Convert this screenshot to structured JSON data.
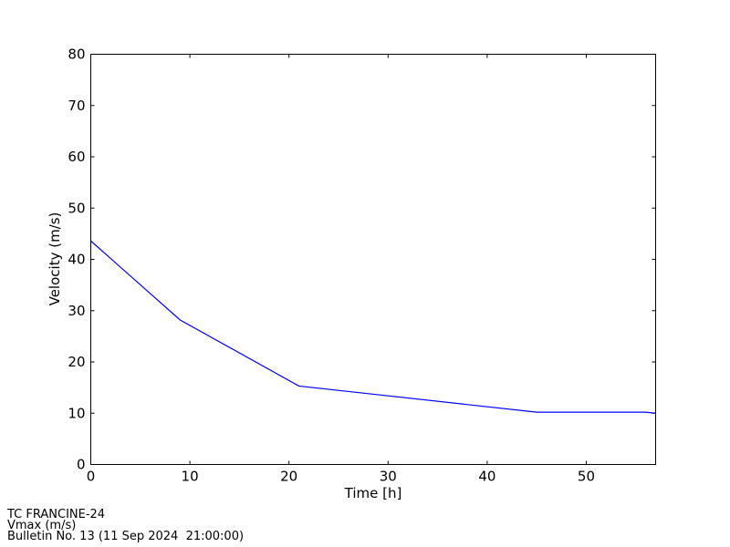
{
  "chart_data": {
    "type": "line",
    "title": "",
    "xlabel": "Time [h]",
    "ylabel": "Velocity (m/s)",
    "xlim": [
      0,
      57
    ],
    "ylim": [
      0,
      80
    ],
    "xticks": [
      0,
      10,
      20,
      30,
      40,
      50
    ],
    "yticks": [
      0,
      10,
      20,
      30,
      40,
      50,
      60,
      70,
      80
    ],
    "grid": false,
    "series": [
      {
        "color": "#0000ff",
        "x": [
          0,
          9,
          21,
          45,
          56,
          57
        ],
        "y": [
          43.6,
          28.2,
          15.3,
          10.2,
          10.2,
          10.0
        ]
      }
    ]
  },
  "footer": {
    "line1": "TC FRANCINE-24",
    "line2": "Vmax (m/s)",
    "line3": "Bulletin No. 13 (11 Sep 2024  21:00:00)"
  }
}
